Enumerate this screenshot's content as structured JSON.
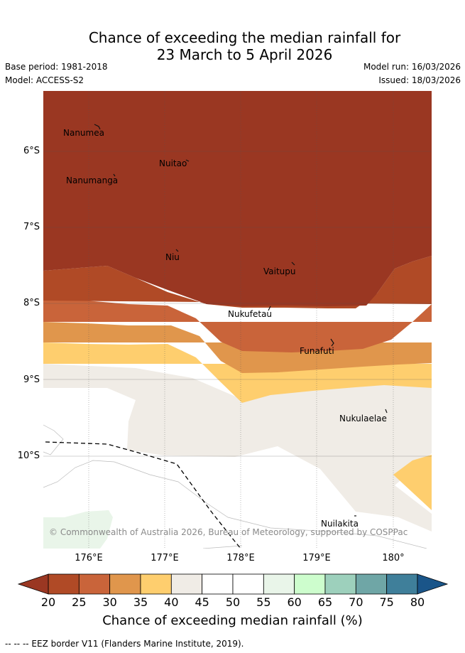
{
  "title": {
    "line1": "Chance of exceeding the median rainfall for",
    "line2": "23 March to 5 April 2026"
  },
  "meta": {
    "base_period": "Base period: 1981-2018",
    "model": "Model: ACCESS-S2",
    "model_run": "Model run: 16/03/2026",
    "issued": "Issued: 18/03/2026"
  },
  "axes": {
    "lat_labels": [
      "6°S",
      "7°S",
      "8°S",
      "9°S",
      "10°S"
    ],
    "lon_labels": [
      "176°E",
      "177°E",
      "178°E",
      "179°E",
      "180°"
    ]
  },
  "places": [
    "Nanumea",
    "Nuitao",
    "Nanumanga",
    "Niu",
    "Vaitupu",
    "Nukufetau",
    "Funafuti",
    "Nukulaelae",
    "Nuilakita"
  ],
  "copyright": "© Commonwealth of Australia 2026, Bureau of Meteorology, supported by COSPPac",
  "colorbar": {
    "ticks": [
      "20",
      "25",
      "30",
      "35",
      "40",
      "45",
      "50",
      "55",
      "60",
      "65",
      "70",
      "75",
      "80"
    ],
    "colors": [
      "#9a3722",
      "#b04a26",
      "#c9643a",
      "#e0964c",
      "#fece6e",
      "#f0ece6",
      "#ffffff",
      "#ffffff",
      "#e9f5e9",
      "#cdfdcd",
      "#9dd0bc",
      "#6fa6a6",
      "#3f7f9a",
      "#1a5589"
    ],
    "label": "Chance of exceeding median rainfall (%)"
  },
  "footer": "-- -- -- EEZ border V11 (Flanders Marine Institute, 2019)."
}
